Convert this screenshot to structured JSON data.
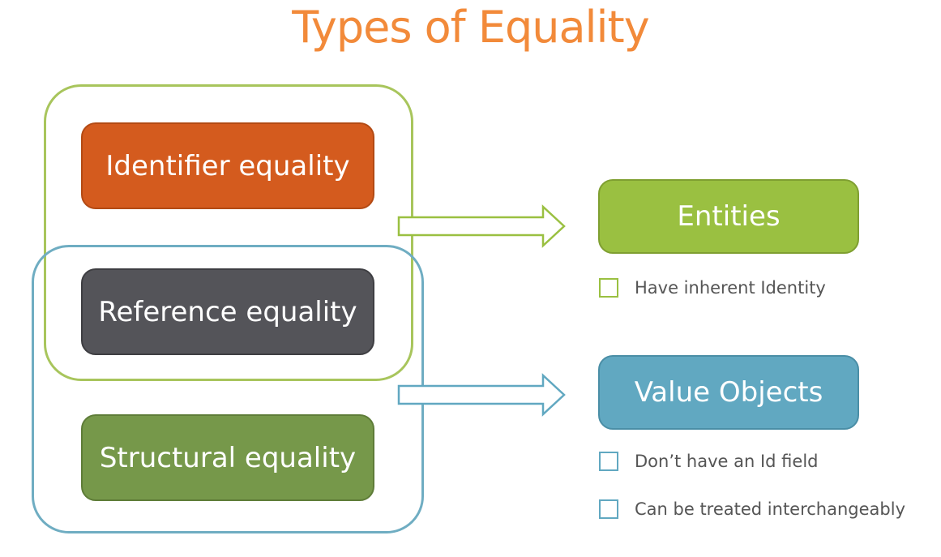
{
  "title": "Types of Equality",
  "boxes": {
    "identifier": "Identifier equality",
    "reference": "Reference equality",
    "structural": "Structural equality",
    "entities": "Entities",
    "value_objects": "Value Objects"
  },
  "entities_points": [
    "Have inherent Identity"
  ],
  "value_points": [
    "Don’t have an Id field",
    "Can be treated interchangeably"
  ],
  "colors": {
    "title": "#f28a3a",
    "orange": "#d45b1e",
    "dark": "#545459",
    "green_dark": "#76984a",
    "green": "#9ac041",
    "blue": "#61a8c1"
  }
}
